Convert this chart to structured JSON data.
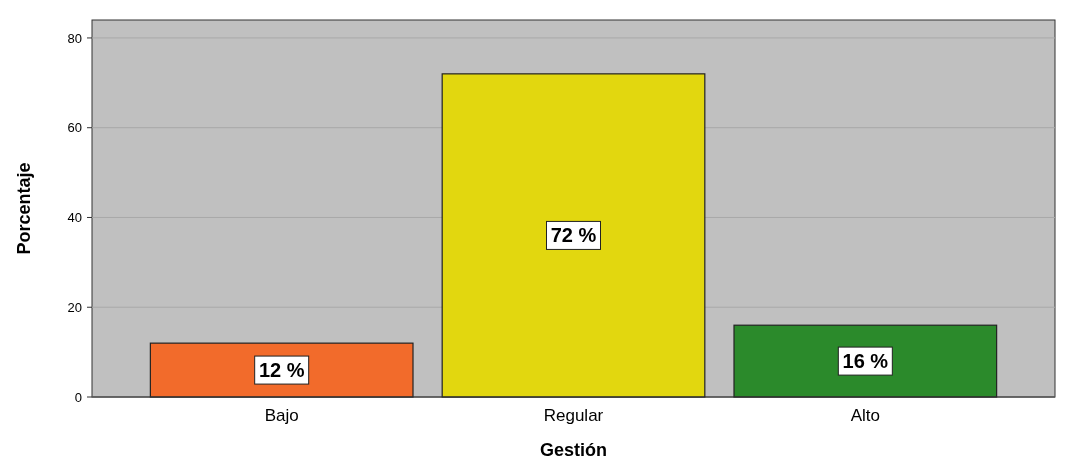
{
  "chart_data": {
    "type": "bar",
    "xlabel": "Gestión",
    "ylabel": "Porcentaje",
    "categories": [
      "Bajo",
      "Regular",
      "Alto"
    ],
    "values": [
      12,
      72,
      16
    ],
    "colors": [
      "#f26b2b",
      "#e2d70f",
      "#2b8a2b"
    ],
    "value_labels": [
      "12 %",
      "72 %",
      "16 %"
    ],
    "ylim": [
      0,
      84
    ],
    "yticks": [
      0,
      20,
      40,
      60,
      80
    ],
    "grid": "y"
  }
}
